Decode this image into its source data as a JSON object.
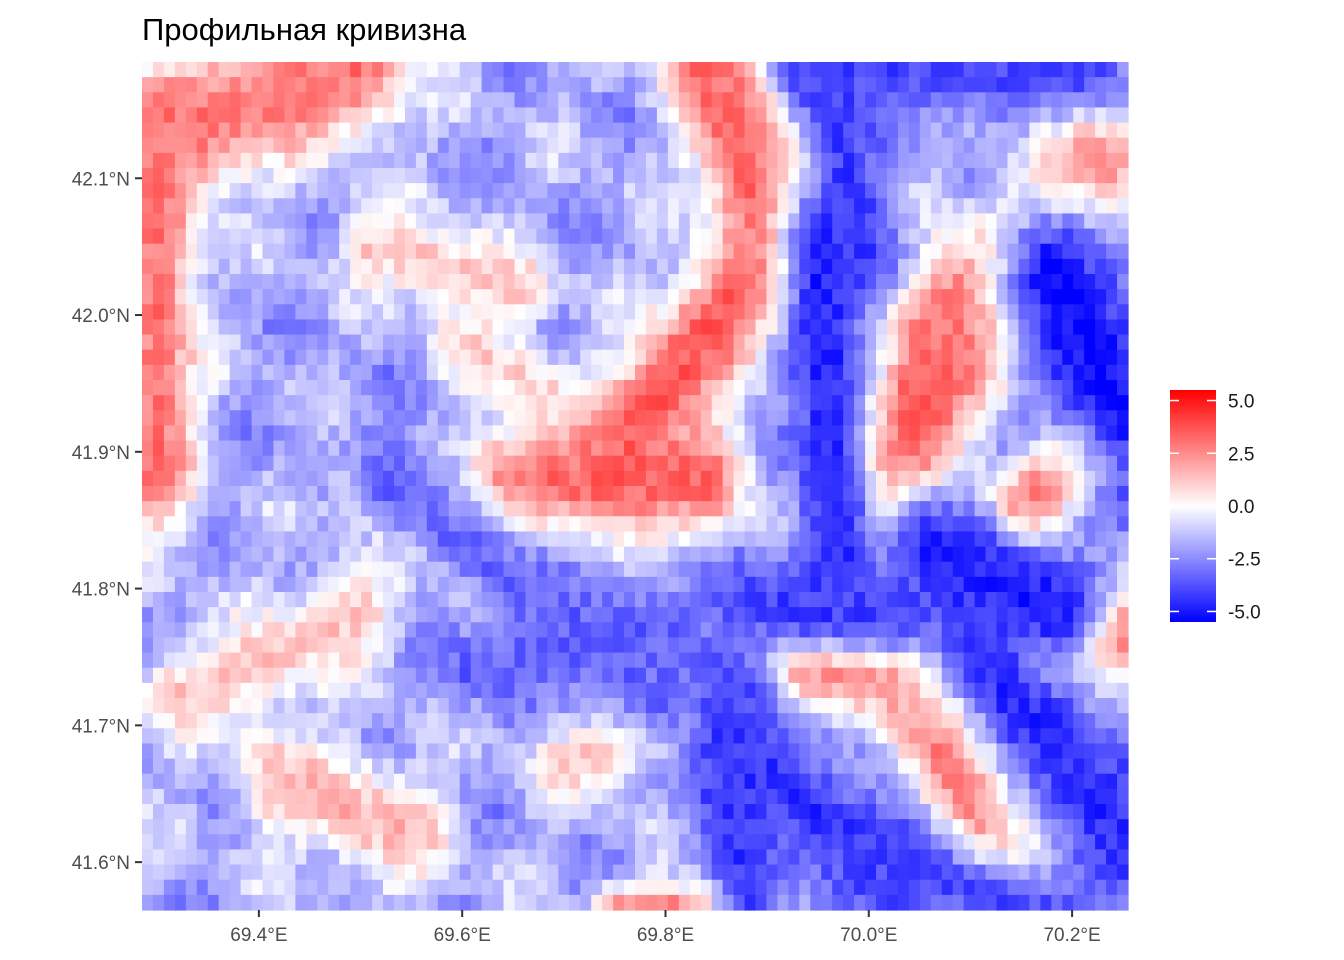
{
  "chart_data": {
    "type": "heatmap",
    "title": "Профильная кривизна",
    "xlabel": "",
    "ylabel": "",
    "xlim": [
      69.285,
      70.255
    ],
    "ylim": [
      41.565,
      42.185
    ],
    "x_ticks": [
      {
        "value": 69.4,
        "label": "69.4°E"
      },
      {
        "value": 69.6,
        "label": "69.6°E"
      },
      {
        "value": 69.8,
        "label": "69.8°E"
      },
      {
        "value": 70.0,
        "label": "70.0°E"
      },
      {
        "value": 70.2,
        "label": "70.2°E"
      }
    ],
    "y_ticks": [
      {
        "value": 41.6,
        "label": "41.6°N"
      },
      {
        "value": 41.7,
        "label": "41.7°N"
      },
      {
        "value": 41.8,
        "label": "41.8°N"
      },
      {
        "value": 41.9,
        "label": "41.9°N"
      },
      {
        "value": 42.0,
        "label": "42.0°N"
      },
      {
        "value": 42.1,
        "label": "42.1°N"
      }
    ],
    "grid": false,
    "legend": {
      "position": "right",
      "title": "",
      "min": -5.5,
      "max": 5.5,
      "colors": {
        "low": "#0000FF",
        "mid": "#FFFFFF",
        "high": "#FF0000"
      },
      "breaks": [
        {
          "value": 5.0,
          "label": "5.0"
        },
        {
          "value": 2.5,
          "label": "2.5"
        },
        {
          "value": 0.0,
          "label": "0.0"
        },
        {
          "value": -2.5,
          "label": "-2.5"
        },
        {
          "value": -5.0,
          "label": "-5.0"
        }
      ]
    },
    "field": {
      "grid_size": [
        90,
        56
      ],
      "base_value": -1.8,
      "ridges": [
        {
          "x0": 69.3,
          "y0": 42.13,
          "x1": 69.5,
          "y1": 42.18,
          "value": 3.0,
          "width": 0.035
        },
        {
          "x0": 69.3,
          "y0": 42.13,
          "x1": 69.3,
          "y1": 41.88,
          "value": 3.0,
          "width": 0.028
        },
        {
          "x0": 69.76,
          "y0": 41.91,
          "x1": 69.91,
          "y1": 42.05,
          "value": 3.6,
          "width": 0.032
        },
        {
          "x0": 69.91,
          "y0": 42.05,
          "x1": 69.84,
          "y1": 42.18,
          "value": 3.4,
          "width": 0.03
        },
        {
          "x0": 69.64,
          "y0": 41.88,
          "x1": 69.84,
          "y1": 41.88,
          "value": 3.4,
          "width": 0.028
        },
        {
          "x0": 69.5,
          "y0": 41.87,
          "x1": 69.63,
          "y1": 41.81,
          "value": 3.2,
          "width": 0.018
        },
        {
          "x0": 69.87,
          "y0": 42.18,
          "x1": 69.96,
          "y1": 42.1,
          "value": 3.0,
          "width": 0.02
        },
        {
          "x0": 70.02,
          "y0": 41.89,
          "x1": 70.1,
          "y1": 42.0,
          "value": 3.8,
          "width": 0.035
        },
        {
          "x0": 70.1,
          "y0": 42.0,
          "x1": 70.22,
          "y1": 42.11,
          "value": 3.8,
          "width": 0.035
        },
        {
          "x0": 70.04,
          "y0": 41.9,
          "x1": 70.06,
          "y1": 41.98,
          "value": 3.4,
          "width": 0.02
        },
        {
          "x0": 70.15,
          "y0": 41.86,
          "x1": 70.26,
          "y1": 41.93,
          "value": 3.6,
          "width": 0.022
        },
        {
          "x0": 70.17,
          "y0": 41.75,
          "x1": 70.26,
          "y1": 41.77,
          "value": 3.6,
          "width": 0.022
        },
        {
          "x0": 69.93,
          "y0": 41.74,
          "x1": 70.06,
          "y1": 41.74,
          "value": 3.4,
          "width": 0.02
        },
        {
          "x0": 70.07,
          "y0": 41.7,
          "x1": 70.12,
          "y1": 41.6,
          "value": 3.6,
          "width": 0.04
        },
        {
          "x0": 69.91,
          "y0": 41.66,
          "x1": 69.98,
          "y1": 41.63,
          "value": 3.2,
          "width": 0.022
        },
        {
          "x0": 69.75,
          "y0": 41.56,
          "x1": 69.86,
          "y1": 41.57,
          "value": 3.2,
          "width": 0.014
        },
        {
          "x0": 69.42,
          "y0": 41.66,
          "x1": 69.55,
          "y1": 41.62,
          "value": 1.6,
          "width": 0.028
        },
        {
          "x0": 69.32,
          "y0": 41.72,
          "x1": 69.5,
          "y1": 41.78,
          "value": 1.2,
          "width": 0.025
        },
        {
          "x0": 69.7,
          "y0": 41.67,
          "x1": 69.85,
          "y1": 41.71,
          "value": 1.4,
          "width": 0.02
        },
        {
          "x0": 69.51,
          "y0": 42.05,
          "x1": 69.66,
          "y1": 42.02,
          "value": 1.2,
          "width": 0.02
        },
        {
          "x0": 69.6,
          "y0": 41.98,
          "x1": 69.68,
          "y1": 41.94,
          "value": 1.0,
          "width": 0.02
        }
      ],
      "valleys": [
        {
          "x0": 70.18,
          "y0": 42.03,
          "x1": 70.25,
          "y1": 41.93,
          "value": -5.3,
          "width": 0.045
        },
        {
          "x0": 70.06,
          "y0": 41.83,
          "x1": 70.19,
          "y1": 41.78,
          "value": -5.0,
          "width": 0.03
        },
        {
          "x0": 70.1,
          "y0": 41.76,
          "x1": 70.25,
          "y1": 41.62,
          "value": -4.6,
          "width": 0.035
        },
        {
          "x0": 69.96,
          "y0": 42.18,
          "x1": 69.99,
          "y1": 42.05,
          "value": -4.2,
          "width": 0.03
        },
        {
          "x0": 69.95,
          "y0": 42.05,
          "x1": 69.97,
          "y1": 41.82,
          "value": -4.8,
          "width": 0.028
        },
        {
          "x0": 69.94,
          "y0": 42.18,
          "x1": 70.22,
          "y1": 42.18,
          "value": -4.0,
          "width": 0.025
        },
        {
          "x0": 69.87,
          "y0": 41.79,
          "x1": 70.03,
          "y1": 41.78,
          "value": -4.2,
          "width": 0.022
        },
        {
          "x0": 69.87,
          "y0": 41.68,
          "x1": 70.02,
          "y1": 41.6,
          "value": -4.6,
          "width": 0.035
        },
        {
          "x0": 70.02,
          "y0": 41.6,
          "x1": 70.18,
          "y1": 41.56,
          "value": -4.0,
          "width": 0.025
        },
        {
          "x0": 69.86,
          "y0": 41.72,
          "x1": 69.88,
          "y1": 41.58,
          "value": -4.4,
          "width": 0.028
        },
        {
          "x0": 69.52,
          "y0": 41.88,
          "x1": 69.8,
          "y1": 41.72,
          "value": -3.3,
          "width": 0.03
        },
        {
          "x0": 69.6,
          "y0": 41.74,
          "x1": 69.8,
          "y1": 41.78,
          "value": -3.4,
          "width": 0.02
        }
      ],
      "speckle_amplitude": 0.7
    }
  }
}
